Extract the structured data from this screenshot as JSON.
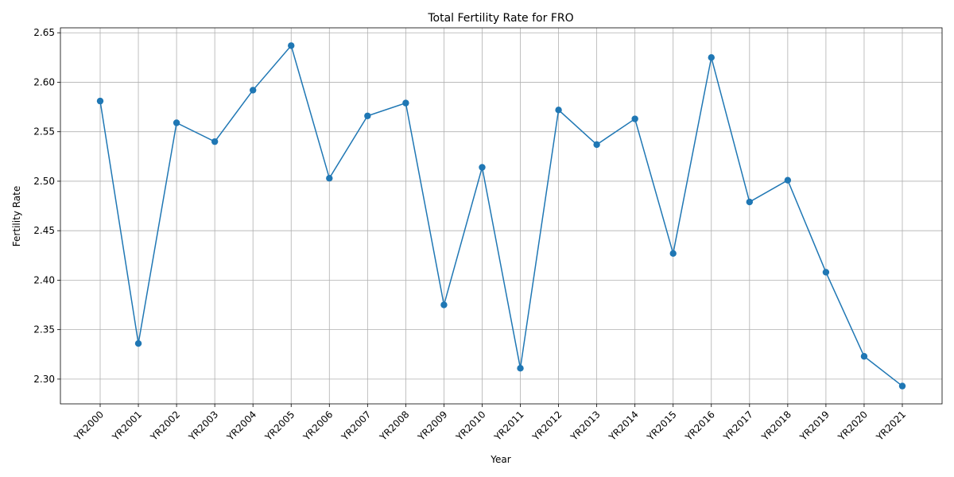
{
  "chart_data": {
    "type": "line",
    "title": "Total Fertility Rate for FRO",
    "xlabel": "Year",
    "ylabel": "Fertility Rate",
    "categories": [
      "YR2000",
      "YR2001",
      "YR2002",
      "YR2003",
      "YR2004",
      "YR2005",
      "YR2006",
      "YR2007",
      "YR2008",
      "YR2009",
      "YR2010",
      "YR2011",
      "YR2012",
      "YR2013",
      "YR2014",
      "YR2015",
      "YR2016",
      "YR2017",
      "YR2018",
      "YR2019",
      "YR2020",
      "YR2021"
    ],
    "series": [
      {
        "color": "#1f77b4",
        "marker": "circle",
        "values": [
          2.581,
          2.336,
          2.559,
          2.54,
          2.592,
          2.637,
          2.503,
          2.566,
          2.579,
          2.375,
          2.514,
          2.311,
          2.572,
          2.537,
          2.563,
          2.427,
          2.625,
          2.479,
          2.501,
          2.408,
          2.323,
          2.293
        ]
      }
    ],
    "ylim": [
      2.275,
      2.655
    ],
    "yticks": [
      "2.30",
      "2.35",
      "2.40",
      "2.45",
      "2.50",
      "2.55",
      "2.60",
      "2.65"
    ],
    "grid": true,
    "x_tick_rotation": 45
  }
}
